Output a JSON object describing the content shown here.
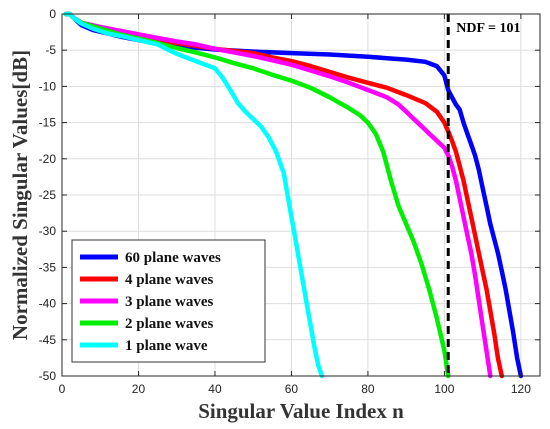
{
  "chart_data": {
    "type": "line",
    "xlabel": "Singular Value Index n",
    "ylabel": "Normalized Singular Values[dB]",
    "xlim": [
      0,
      125
    ],
    "ylim": [
      -50,
      0
    ],
    "x_ticks": [
      0,
      20,
      40,
      60,
      80,
      100,
      120
    ],
    "y_ticks": [
      0,
      -5,
      -10,
      -15,
      -20,
      -25,
      -30,
      -35,
      -40,
      -45,
      -50
    ],
    "grid": true,
    "legend_position": "bottom-left",
    "annotation": {
      "label": "NDF = 101",
      "x": 101
    },
    "series": [
      {
        "name": "60 plane waves",
        "color": "#0000ff",
        "x": [
          1,
          2,
          3,
          5,
          8,
          12,
          16,
          20,
          25,
          30,
          40,
          50,
          60,
          70,
          80,
          85,
          90,
          95,
          98,
          100,
          101,
          102,
          103,
          104,
          105,
          106,
          107,
          108,
          109,
          110,
          111,
          112,
          113,
          114,
          115,
          116,
          117,
          118,
          119,
          120
        ],
        "values": [
          0,
          0,
          -0.5,
          -1.5,
          -2.2,
          -2.7,
          -3.2,
          -3.6,
          -4.0,
          -4.4,
          -4.9,
          -5.2,
          -5.4,
          -5.6,
          -5.9,
          -6.1,
          -6.3,
          -6.6,
          -7.2,
          -8.5,
          -10.5,
          -11.5,
          -12.5,
          -13.2,
          -15,
          -16.5,
          -18,
          -19.5,
          -21.5,
          -24,
          -26.5,
          -29,
          -31,
          -33,
          -35.5,
          -38,
          -41,
          -44,
          -47.5,
          -50
        ]
      },
      {
        "name": "4 plane waves",
        "color": "#ff0000",
        "x": [
          1,
          2,
          3,
          5,
          10,
          15,
          20,
          30,
          40,
          50,
          55,
          60,
          65,
          70,
          75,
          80,
          85,
          90,
          95,
          98,
          100,
          101,
          102,
          103,
          104,
          105,
          106,
          107,
          108,
          109,
          110,
          111,
          112,
          113,
          114,
          115
        ],
        "values": [
          0,
          0,
          -0.5,
          -1.2,
          -2.0,
          -2.6,
          -3.1,
          -4.0,
          -4.8,
          -5.4,
          -6.0,
          -6.5,
          -7.2,
          -8.0,
          -8.8,
          -9.5,
          -10.2,
          -11.2,
          -12.3,
          -13.5,
          -15,
          -16.2,
          -17.5,
          -19,
          -21,
          -23,
          -25.5,
          -28,
          -30.5,
          -33,
          -35.5,
          -38,
          -41,
          -44,
          -47.5,
          -50
        ]
      },
      {
        "name": "3 plane waves",
        "color": "#ff00ff",
        "x": [
          1,
          2,
          3,
          5,
          10,
          15,
          20,
          25,
          30,
          35,
          40,
          45,
          50,
          55,
          60,
          65,
          70,
          75,
          80,
          85,
          88,
          90,
          92,
          94,
          96,
          98,
          100,
          101,
          102,
          103,
          104,
          105,
          106,
          107,
          108,
          109,
          110,
          111,
          112
        ],
        "values": [
          0,
          0,
          -0.5,
          -1.2,
          -1.8,
          -2.3,
          -2.8,
          -3.3,
          -3.8,
          -4.2,
          -4.8,
          -5.3,
          -5.8,
          -6.4,
          -7.0,
          -7.8,
          -8.6,
          -9.5,
          -10.5,
          -11.5,
          -12.5,
          -13.5,
          -14.5,
          -15.5,
          -16.5,
          -17.5,
          -18.5,
          -19.5,
          -21,
          -23,
          -25.5,
          -28,
          -30.5,
          -33,
          -36,
          -39.5,
          -43,
          -46.5,
          -50
        ]
      },
      {
        "name": "2 plane waves",
        "color": "#00ee00",
        "x": [
          1,
          2,
          3,
          5,
          10,
          15,
          20,
          25,
          30,
          35,
          40,
          45,
          50,
          55,
          60,
          65,
          70,
          75,
          78,
          80,
          82,
          84,
          86,
          88,
          90,
          92,
          94,
          96,
          98,
          100,
          101
        ],
        "values": [
          0,
          0,
          -0.5,
          -1.2,
          -2.0,
          -2.8,
          -3.4,
          -4.0,
          -4.7,
          -5.3,
          -6.0,
          -6.8,
          -7.5,
          -8.4,
          -9.2,
          -10.2,
          -11.5,
          -13.0,
          -14.0,
          -15.0,
          -16.5,
          -19.0,
          -23.0,
          -26.5,
          -29.0,
          -31.5,
          -34.5,
          -38.0,
          -42.0,
          -46.5,
          -50
        ]
      },
      {
        "name": "1 plane wave",
        "color": "#00ffff",
        "x": [
          1,
          2,
          3,
          5,
          8,
          12,
          16,
          20,
          25,
          28,
          30,
          35,
          40,
          42,
          44,
          46,
          48,
          50,
          52,
          54,
          56,
          58,
          59,
          60,
          61,
          62,
          63,
          64,
          65,
          66,
          67,
          68
        ],
        "values": [
          0,
          0,
          -0.5,
          -1.3,
          -2.0,
          -2.7,
          -3.1,
          -3.6,
          -4.2,
          -5.0,
          -5.5,
          -6.5,
          -7.5,
          -8.8,
          -10.5,
          -12.3,
          -13.5,
          -14.5,
          -15.5,
          -17.0,
          -19.0,
          -22.0,
          -25.0,
          -28.0,
          -31.0,
          -34.0,
          -37.0,
          -40.0,
          -43.0,
          -46.0,
          -48.5,
          -50
        ]
      }
    ]
  }
}
